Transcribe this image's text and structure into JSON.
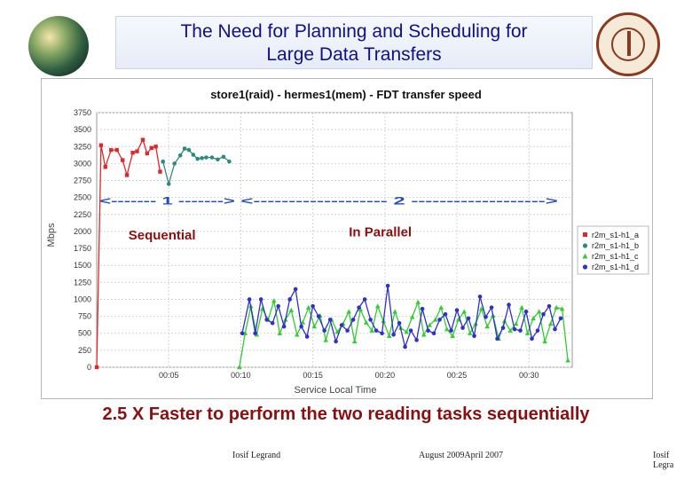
{
  "slide": {
    "title_line1": "The Need for Planning and  Scheduling for",
    "title_line2": "Large Data Transfers",
    "headline": "2.5 X Faster to perform the two reading tasks sequentially",
    "footer_left": "Iosif Legrand",
    "footer_center": "August   2009April 2007",
    "footer_right": "Iosif Legra"
  },
  "chart_data": {
    "type": "line",
    "title": "store1(raid) - hermes1(mem) - FDT transfer speed",
    "xlabel": "Service Local Time",
    "ylabel": "Mbps",
    "xlim": [
      0,
      33
    ],
    "ylim": [
      0,
      3750
    ],
    "yticks": [
      0,
      250,
      500,
      750,
      1000,
      1250,
      1500,
      1750,
      2000,
      2250,
      2500,
      2750,
      3000,
      3250,
      3500,
      3750
    ],
    "xticks": [
      {
        "value": 5,
        "label": "00:05"
      },
      {
        "value": 10,
        "label": "00:10"
      },
      {
        "value": 15,
        "label": "00:15"
      },
      {
        "value": 20,
        "label": "00:20"
      },
      {
        "value": 25,
        "label": "00:25"
      },
      {
        "value": 30,
        "label": "00:30"
      }
    ],
    "grid": true,
    "legend_position": "right",
    "phase_labels": [
      {
        "text": "<------- 1 ------->",
        "x_start": 0.2,
        "x_end": 9.6
      },
      {
        "text": "<------------------- 2 ------------------->",
        "x_start": 10.0,
        "x_end": 32.0
      }
    ],
    "annotations": [
      {
        "text": "Sequential",
        "x": 2.2,
        "y": 1880
      },
      {
        "text": "In Parallel",
        "x": 17.5,
        "y": 1930
      }
    ],
    "series": [
      {
        "name": "r2m_s1-h1_a",
        "color": "#e02828",
        "marker": "square",
        "x": [
          0.0,
          0.3,
          0.6,
          1.0,
          1.4,
          1.8,
          2.1,
          2.5,
          2.8,
          3.2,
          3.5,
          3.8,
          4.1,
          4.4
        ],
        "y": [
          0,
          3270,
          2950,
          3200,
          3200,
          3050,
          2830,
          3160,
          3180,
          3350,
          3150,
          3230,
          3250,
          2880
        ]
      },
      {
        "name": "r2m_s1-h1_b",
        "color": "#2e8b7a",
        "marker": "circle",
        "x": [
          4.6,
          5.0,
          5.4,
          5.8,
          6.1,
          6.4,
          6.7,
          7.0,
          7.3,
          7.6,
          8.0,
          8.4,
          8.8,
          9.2
        ],
        "y": [
          3030,
          2700,
          3000,
          3120,
          3220,
          3200,
          3130,
          3070,
          3080,
          3090,
          3090,
          3060,
          3100,
          3030
        ]
      },
      {
        "name": "r2m_s1-h1_c",
        "color": "#33cc33",
        "marker": "triangle",
        "x": [
          9.9,
          10.3,
          10.7,
          11.1,
          11.5,
          11.9,
          12.3,
          12.7,
          13.1,
          13.5,
          13.9,
          14.3,
          14.7,
          15.1,
          15.5,
          15.9,
          16.3,
          16.7,
          17.1,
          17.5,
          17.9,
          18.3,
          18.7,
          19.1,
          19.5,
          19.9,
          20.3,
          20.7,
          21.1,
          21.5,
          21.9,
          22.3,
          22.7,
          23.1,
          23.5,
          23.9,
          24.3,
          24.7,
          25.1,
          25.5,
          25.9,
          26.3,
          26.7,
          27.1,
          27.5,
          27.9,
          28.3,
          28.7,
          29.1,
          29.5,
          29.9,
          30.3,
          30.7,
          31.1,
          31.5,
          31.9,
          32.3,
          32.7
        ],
        "y": [
          0,
          500,
          900,
          480,
          860,
          700,
          980,
          500,
          700,
          840,
          480,
          660,
          880,
          600,
          760,
          400,
          700,
          520,
          640,
          820,
          380,
          850,
          660,
          540,
          900,
          680,
          460,
          820,
          580,
          520,
          740,
          960,
          480,
          620,
          700,
          880,
          560,
          460,
          700,
          820,
          500,
          640,
          860,
          600,
          760,
          420,
          680,
          540,
          640,
          880,
          500,
          720,
          820,
          380,
          640,
          880,
          860,
          100
        ]
      },
      {
        "name": "r2m_s1-h1_d",
        "color": "#3030cc",
        "marker": "circle",
        "x": [
          10.1,
          10.6,
          11.0,
          11.4,
          11.8,
          12.2,
          12.6,
          13.0,
          13.4,
          13.8,
          14.2,
          14.6,
          15.0,
          15.4,
          15.8,
          16.2,
          16.6,
          17.0,
          17.4,
          17.8,
          18.2,
          18.6,
          19.0,
          19.4,
          19.8,
          20.2,
          20.6,
          21.0,
          21.4,
          21.8,
          22.2,
          22.6,
          23.0,
          23.4,
          23.8,
          24.2,
          24.6,
          25.0,
          25.4,
          25.8,
          26.2,
          26.6,
          27.0,
          27.4,
          27.8,
          28.2,
          28.6,
          29.0,
          29.4,
          29.8,
          30.2,
          30.6,
          31.0,
          31.4,
          31.8,
          32.2
        ],
        "y": [
          500,
          1000,
          500,
          1000,
          700,
          650,
          900,
          600,
          1000,
          1150,
          600,
          450,
          900,
          750,
          540,
          700,
          380,
          620,
          540,
          700,
          880,
          1000,
          700,
          540,
          500,
          1200,
          480,
          650,
          300,
          540,
          400,
          860,
          540,
          500,
          700,
          780,
          540,
          840,
          580,
          720,
          460,
          1040,
          740,
          880,
          420,
          580,
          920,
          560,
          540,
          820,
          420,
          540,
          780,
          900,
          560,
          720
        ]
      }
    ]
  }
}
